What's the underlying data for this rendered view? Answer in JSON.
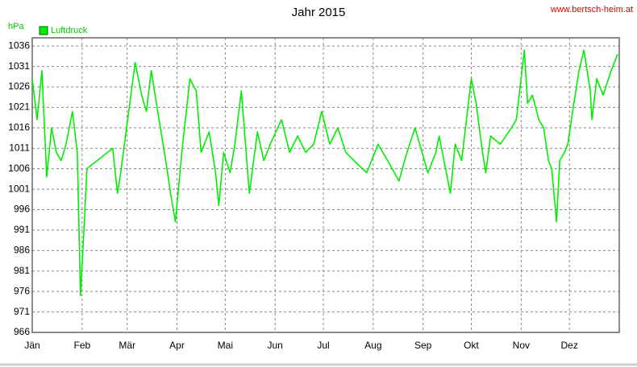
{
  "chart_data": {
    "type": "line",
    "title": "Jahr 2015",
    "ylabel": "hPa",
    "source": "www.bertsch-heim.at",
    "x": [
      0,
      3,
      6,
      9,
      12,
      15,
      18,
      21,
      25,
      28,
      30,
      32,
      34,
      50,
      53,
      55,
      60,
      64,
      68,
      71,
      74,
      78,
      83,
      86,
      89,
      93,
      98,
      102,
      105,
      110,
      114,
      116,
      119,
      123,
      126,
      130,
      133,
      135,
      140,
      144,
      148,
      155,
      160,
      165,
      170,
      175,
      180,
      185,
      190,
      195,
      200,
      208,
      215,
      221,
      228,
      233,
      238,
      246,
      251,
      253,
      260,
      263,
      267,
      273,
      276,
      280,
      282,
      285,
      291,
      298,
      301,
      306,
      308,
      311,
      315,
      318,
      321,
      323,
      326,
      328,
      331,
      333,
      336,
      340,
      343,
      347,
      348,
      351,
      355,
      360,
      364
    ],
    "series": [
      {
        "name": "Luftdruck",
        "color": "#00ee00",
        "values": [
          1028,
          1018,
          1030,
          1004,
          1016,
          1010,
          1008,
          1012,
          1020,
          1010,
          975,
          990,
          1006,
          1011,
          1000,
          1005,
          1020,
          1032,
          1024,
          1020,
          1030,
          1020,
          1008,
          1000,
          993,
          1010,
          1028,
          1025,
          1010,
          1015,
          1005,
          997,
          1010,
          1005,
          1012,
          1025,
          1010,
          1000,
          1015,
          1008,
          1012,
          1018,
          1010,
          1014,
          1010,
          1012,
          1020,
          1012,
          1016,
          1010,
          1008,
          1005,
          1012,
          1008,
          1003,
          1010,
          1016,
          1005,
          1010,
          1014,
          1000,
          1012,
          1008,
          1028,
          1022,
          1010,
          1005,
          1014,
          1012,
          1016,
          1018,
          1035,
          1022,
          1024,
          1018,
          1016,
          1008,
          1006,
          993,
          1008,
          1010,
          1012,
          1020,
          1030,
          1035,
          1025,
          1018,
          1028,
          1024,
          1030,
          1034
        ]
      }
    ],
    "xlim": [
      0,
      365
    ],
    "xticks": [
      {
        "value": 0,
        "label": "Jän"
      },
      {
        "value": 31,
        "label": "Feb"
      },
      {
        "value": 59,
        "label": "Mär"
      },
      {
        "value": 90,
        "label": "Apr"
      },
      {
        "value": 120,
        "label": "Mai"
      },
      {
        "value": 151,
        "label": "Jun"
      },
      {
        "value": 181,
        "label": "Jul"
      },
      {
        "value": 212,
        "label": "Aug"
      },
      {
        "value": 243,
        "label": "Sep"
      },
      {
        "value": 273,
        "label": "Okt"
      },
      {
        "value": 304,
        "label": "Nov"
      },
      {
        "value": 334,
        "label": "Dez"
      }
    ],
    "ylim": [
      966,
      1038
    ],
    "yticks": [
      966,
      971,
      976,
      981,
      986,
      991,
      996,
      1001,
      1006,
      1011,
      1016,
      1021,
      1026,
      1031,
      1036
    ],
    "grid": true
  }
}
